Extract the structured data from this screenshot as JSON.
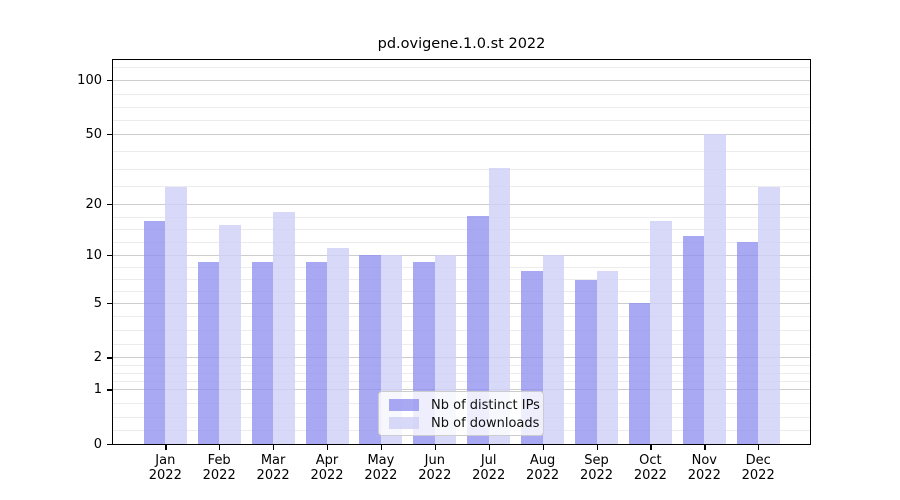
{
  "chart_data": {
    "type": "bar",
    "title": "pd.ovigene.1.0.st 2022",
    "xlabel": "",
    "ylabel": "",
    "categories": [
      "Jan 2022",
      "Feb 2022",
      "Mar 2022",
      "Apr 2022",
      "May 2022",
      "Jun 2022",
      "Jul 2022",
      "Aug 2022",
      "Sep 2022",
      "Oct 2022",
      "Nov 2022",
      "Dec 2022"
    ],
    "series": [
      {
        "name": "Nb of distinct IPs",
        "color": "rgba(143,143,240,0.78)",
        "values": [
          16,
          9,
          9,
          9,
          10,
          9,
          17,
          8,
          7,
          5,
          13,
          12
        ]
      },
      {
        "name": "Nb of downloads",
        "color": "rgba(207,207,246,0.82)",
        "values": [
          25,
          15,
          18,
          11,
          10,
          10,
          32,
          10,
          8,
          16,
          50,
          25
        ]
      }
    ],
    "yticks": [
      0,
      1,
      2,
      5,
      10,
      20,
      50,
      100
    ],
    "yscale": "log1p",
    "ylim": [
      0,
      129
    ],
    "grid": true,
    "minor_grid": true,
    "legend_position": "lower center"
  },
  "colors": {
    "background": "#ffffff",
    "axis": "#000000",
    "major_grid": "#cdcdcd",
    "minor_grid": "#ececec",
    "text": "#000000",
    "legend_border": "#cccccc",
    "legend_background": "rgba(255,255,255,0.8)"
  }
}
